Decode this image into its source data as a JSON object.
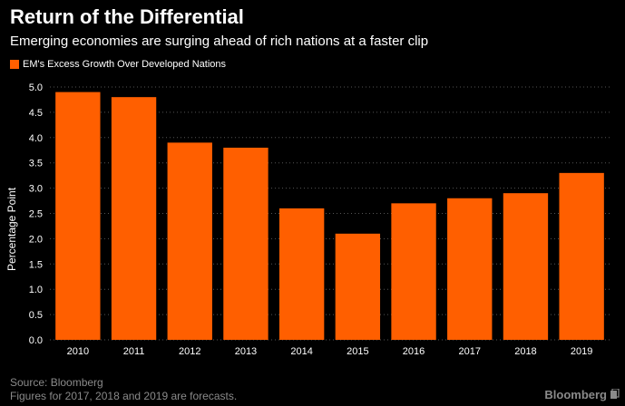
{
  "header": {
    "title": "Return of the Differential",
    "subtitle": "Emerging economies are surging ahead of rich nations at a faster clip"
  },
  "footer": {
    "source": "Source: Bloomberg",
    "note": "Figures for 2017, 2018 and 2019 are forecasts.",
    "brand": "Bloomberg",
    "brand_icon": "bloomberg-terminal-icon"
  },
  "colors": {
    "bar": "#ff5f00",
    "background": "#000000",
    "text": "#ffffff",
    "muted": "#8a8a8a",
    "grid": "#555555"
  },
  "chart_data": {
    "type": "bar",
    "title": "Return of the Differential",
    "subtitle": "Emerging economies are surging ahead of rich nations at a faster clip",
    "xlabel": "",
    "ylabel": "Percentage Point",
    "ylim": [
      0,
      5.0
    ],
    "yticks": [
      "0.0",
      "0.5",
      "1.0",
      "1.5",
      "2.0",
      "2.5",
      "3.0",
      "3.5",
      "4.0",
      "4.5",
      "5.0"
    ],
    "grid": true,
    "legend_position": "top-left",
    "categories": [
      "2010",
      "2011",
      "2012",
      "2013",
      "2014",
      "2015",
      "2016",
      "2017",
      "2018",
      "2019"
    ],
    "series": [
      {
        "name": "EM's Excess Growth Over Developed Nations",
        "values": [
          4.9,
          4.8,
          3.9,
          3.8,
          2.6,
          2.1,
          2.7,
          2.8,
          2.9,
          3.3
        ]
      }
    ]
  }
}
